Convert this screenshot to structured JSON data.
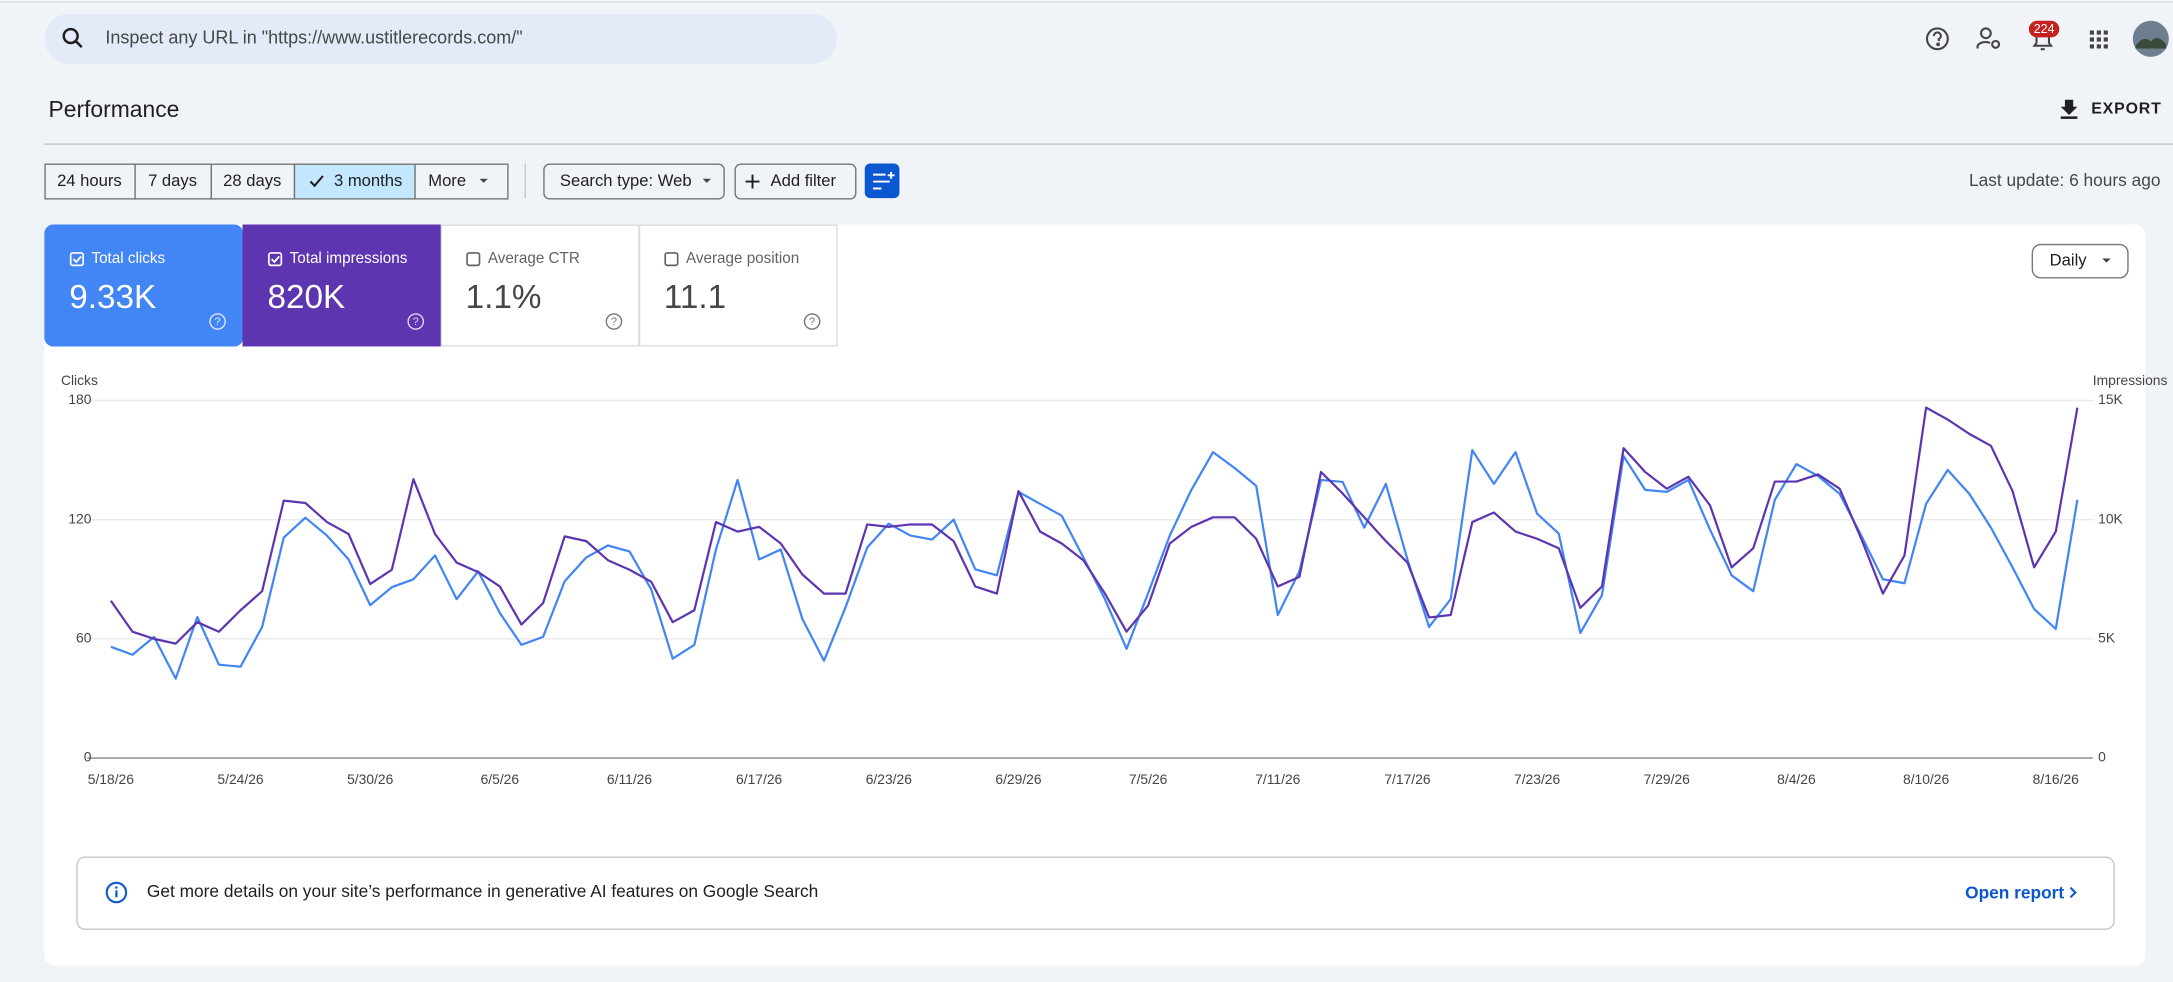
{
  "search": {
    "placeholder": "Inspect any URL in \"https://www.ustitlerecords.com/\""
  },
  "header": {
    "notification_count": "224"
  },
  "page_title": "Performance",
  "export": "EXPORT",
  "filters": {
    "ranges": [
      "24 hours",
      "7 days",
      "28 days",
      "3 months",
      "More"
    ],
    "selected_range": 3,
    "search_type": "Search type: Web",
    "add_filter": "Add filter",
    "last_update": "Last update: 6 hours ago"
  },
  "metrics": [
    {
      "label": "Total clicks",
      "value": "9.33K",
      "checked": true,
      "color": "#4285f4"
    },
    {
      "label": "Total impressions",
      "value": "820K",
      "checked": true,
      "color": "#5e35b1"
    },
    {
      "label": "Average CTR",
      "value": "1.1%",
      "checked": false,
      "color": "#00897b"
    },
    {
      "label": "Average position",
      "value": "11.1",
      "checked": false,
      "color": "#e8710a"
    }
  ],
  "granularity": "Daily",
  "chart_data": {
    "type": "line",
    "categories": [
      "5/18/26",
      null,
      null,
      null,
      null,
      null,
      "5/24/26",
      null,
      null,
      null,
      null,
      null,
      "5/30/26",
      null,
      null,
      null,
      null,
      null,
      "6/5/26",
      null,
      null,
      null,
      null,
      null,
      "6/11/26",
      null,
      null,
      null,
      null,
      null,
      "6/17/26",
      null,
      null,
      null,
      null,
      null,
      "6/23/26",
      null,
      null,
      null,
      null,
      null,
      "6/29/26",
      null,
      null,
      null,
      null,
      null,
      "7/5/26",
      null,
      null,
      null,
      null,
      null,
      "7/11/26",
      null,
      null,
      null,
      null,
      null,
      "7/17/26",
      null,
      null,
      null,
      null,
      null,
      "7/23/26",
      null,
      null,
      null,
      null,
      null,
      "7/29/26",
      null,
      null,
      null,
      null,
      null,
      "8/4/26",
      null,
      null,
      null,
      null,
      null,
      "8/10/26",
      null,
      null,
      null,
      null,
      null,
      "8/16/26",
      null
    ],
    "series": [
      {
        "name": "Clicks",
        "color": "#4285f4",
        "values": [
          56,
          52,
          61,
          40,
          71,
          47,
          46,
          66,
          111,
          121,
          112,
          100,
          77,
          86,
          90,
          102,
          80,
          94,
          73,
          57,
          61,
          89,
          101,
          107,
          104,
          85,
          50,
          57,
          105,
          140,
          100,
          105,
          70,
          49,
          76,
          106,
          118,
          112,
          110,
          120,
          95,
          92,
          134,
          128,
          122,
          101,
          80,
          55,
          83,
          112,
          135,
          154,
          146,
          137,
          72,
          94,
          140,
          139,
          116,
          138,
          100,
          66,
          80,
          155,
          138,
          154,
          123,
          113,
          63,
          82,
          152,
          135,
          134,
          140,
          115,
          92,
          84,
          130,
          148,
          142,
          133,
          112,
          90,
          88,
          128,
          145,
          133,
          116,
          96,
          75,
          65,
          130
        ]
      },
      {
        "name": "Impressions",
        "color": "#5e35b1",
        "axis": "y2",
        "values": [
          6600,
          5300,
          5000,
          4800,
          5700,
          5300,
          6200,
          7000,
          10800,
          10700,
          9900,
          9400,
          7300,
          7900,
          11700,
          9400,
          8200,
          7800,
          7200,
          5600,
          6500,
          9300,
          9100,
          8300,
          7900,
          7400,
          5700,
          6200,
          9900,
          9500,
          9700,
          9000,
          7700,
          6900,
          6900,
          9800,
          9700,
          9800,
          9800,
          9100,
          7200,
          6900,
          11200,
          9500,
          9000,
          8300,
          6900,
          5300,
          6400,
          9000,
          9700,
          10100,
          10100,
          9200,
          7200,
          7600,
          12000,
          11100,
          10100,
          9100,
          8200,
          5900,
          6000,
          9900,
          10300,
          9500,
          9200,
          8800,
          6300,
          7200,
          13000,
          12000,
          11300,
          11800,
          10600,
          8000,
          8800,
          11600,
          11600,
          11900,
          11300,
          9200,
          6900,
          8500,
          14700,
          14200,
          13600,
          13100,
          11200,
          8000,
          9500,
          14700
        ]
      }
    ],
    "ylim": [
      0,
      180
    ],
    "yticks": [
      0,
      60,
      120,
      180
    ],
    "y2lim": [
      0,
      15000
    ],
    "y2ticks": [
      0,
      {
        "value": 5000,
        "label": "5K"
      },
      {
        "value": 10000,
        "label": "10K"
      },
      {
        "value": 15000,
        "label": "15K"
      }
    ],
    "grid": true
  },
  "banner": {
    "text": "Get more details on your site’s performance in generative AI features on Google Search",
    "link": "Open report"
  }
}
